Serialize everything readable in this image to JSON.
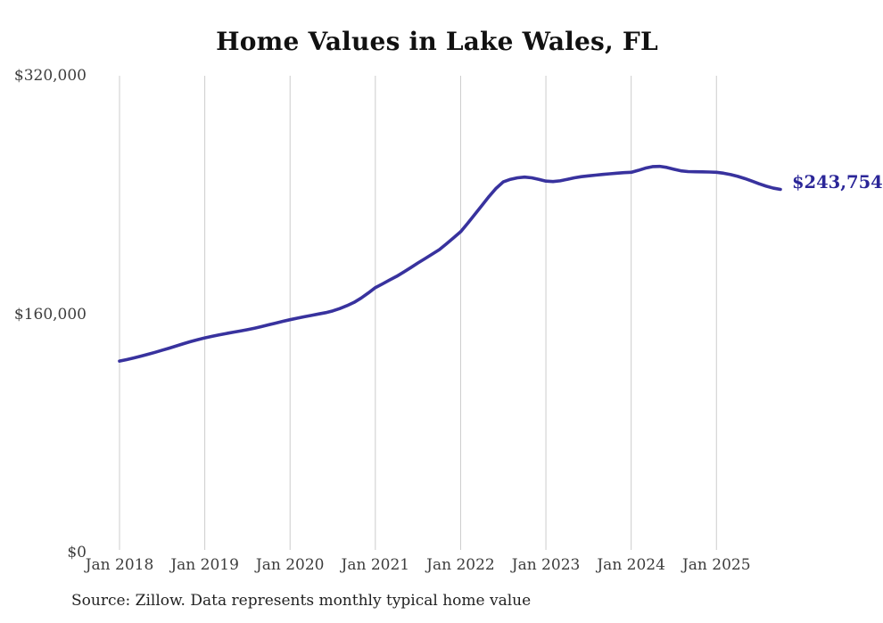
{
  "title": "Home Values in Lake Wales, FL",
  "source_note": "Source: Zillow. Data represents monthly typical home value",
  "current_value_label": "$243,754",
  "colors": {
    "line": "#38329e",
    "end_label": "#2b2698",
    "grid": "#cccccc",
    "axis_text": "#3d3d3d",
    "title_text": "#111111",
    "source_text": "#222222",
    "background": "#ffffff"
  },
  "chart_data": {
    "type": "line",
    "title": "Home Values in Lake Wales, FL",
    "xlabel": "",
    "ylabel": "",
    "ylim": [
      0,
      320000
    ],
    "grid": "vertical-only",
    "legend": "none",
    "x_tick_labels": [
      "Jan 2018",
      "Jan 2019",
      "Jan 2020",
      "Jan 2021",
      "Jan 2022",
      "Jan 2023",
      "Jan 2024",
      "Jan 2025"
    ],
    "y_ticks": [
      {
        "label": "$0",
        "value": 0
      },
      {
        "label": "$160,000",
        "value": 160000
      },
      {
        "label": "$320,000",
        "value": 320000
      }
    ],
    "last_value": 243754,
    "last_value_label": "$243,754",
    "series": [
      {
        "name": "Monthly typical home value",
        "x_start": "2018-01",
        "x_end": "2025-10",
        "x_interval": "monthly",
        "values": [
          128500,
          129500,
          130600,
          131800,
          133100,
          134400,
          135800,
          137200,
          138700,
          140200,
          141600,
          142900,
          144100,
          145100,
          146100,
          147000,
          147900,
          148700,
          149600,
          150600,
          151700,
          152900,
          154000,
          155200,
          156300,
          157300,
          158300,
          159200,
          160100,
          161000,
          162200,
          163800,
          165700,
          167900,
          170800,
          174200,
          177800,
          180300,
          182900,
          185400,
          188300,
          191300,
          194400,
          197300,
          200300,
          203300,
          207200,
          211200,
          215300,
          221000,
          227000,
          233000,
          239000,
          244500,
          248800,
          250500,
          251500,
          252000,
          251500,
          250500,
          249300,
          249000,
          249500,
          250500,
          251500,
          252300,
          252800,
          253300,
          253800,
          254200,
          254600,
          255000,
          255200,
          256500,
          258000,
          259000,
          259200,
          258500,
          257300,
          256200,
          255700,
          255600,
          255500,
          255400,
          255200,
          254600,
          253700,
          252500,
          251000,
          249300,
          247500,
          245900,
          244600,
          243754
        ]
      }
    ]
  }
}
